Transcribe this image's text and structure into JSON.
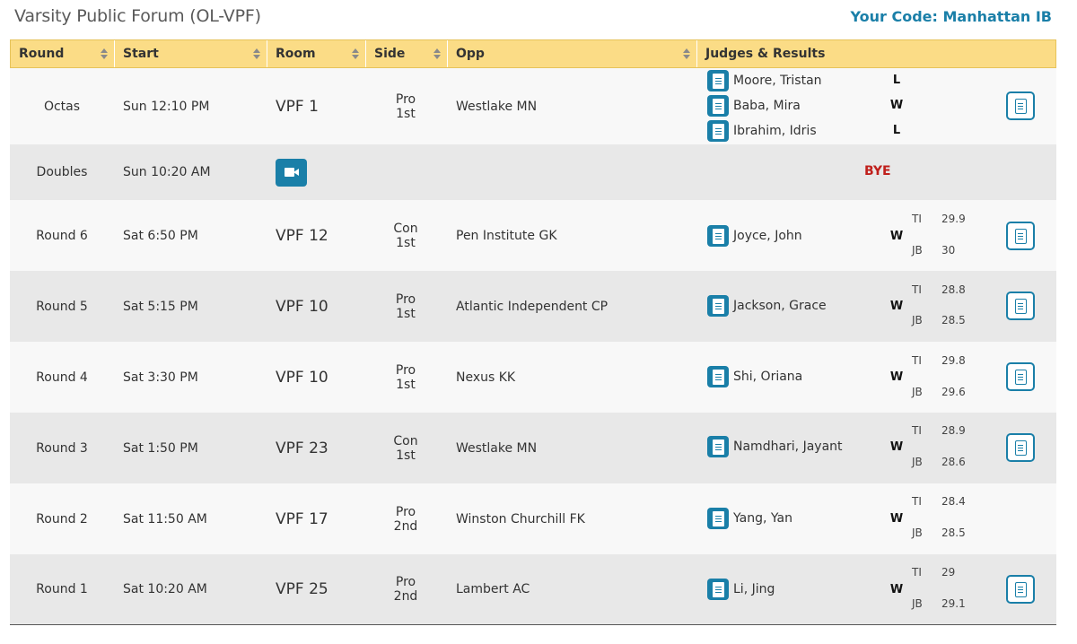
{
  "page": {
    "title": "Varsity Public Forum (OL-VPF)",
    "your_code": "Your Code: Manhattan IB"
  },
  "columns": [
    "Round",
    "Start",
    "Room",
    "Side",
    "Opp",
    "Judges & Results"
  ],
  "rows": [
    {
      "round": "Octas",
      "start": "Sun 12:10 PM",
      "room": "VPF 1",
      "side": "Pro",
      "order": "1st",
      "opp": "Westlake MN",
      "judges": [
        {
          "name": "Moore, Tristan",
          "result": "L"
        },
        {
          "name": "Baba, Mira",
          "result": "W"
        },
        {
          "name": "Ibrahim, Idris",
          "result": "L"
        }
      ],
      "ballot": true
    },
    {
      "round": "Doubles",
      "start": "Sun 10:20 AM",
      "video": true,
      "bye": "BYE"
    },
    {
      "round": "Round 6",
      "start": "Sat 6:50 PM",
      "room": "VPF 12",
      "side": "Con",
      "order": "1st",
      "opp": "Pen Institute GK",
      "judges": [
        {
          "name": "Joyce, John",
          "result": "W"
        }
      ],
      "points": [
        {
          "label": "TI",
          "value": "29.9"
        },
        {
          "label": "JB",
          "value": "30"
        }
      ],
      "ballot": true
    },
    {
      "round": "Round 5",
      "start": "Sat 5:15 PM",
      "room": "VPF 10",
      "side": "Pro",
      "order": "1st",
      "opp": "Atlantic Independent CP",
      "judges": [
        {
          "name": "Jackson, Grace",
          "result": "W"
        }
      ],
      "points": [
        {
          "label": "TI",
          "value": "28.8"
        },
        {
          "label": "JB",
          "value": "28.5"
        }
      ],
      "ballot": true
    },
    {
      "round": "Round 4",
      "start": "Sat 3:30 PM",
      "room": "VPF 10",
      "side": "Pro",
      "order": "1st",
      "opp": "Nexus KK",
      "judges": [
        {
          "name": "Shi, Oriana",
          "result": "W"
        }
      ],
      "points": [
        {
          "label": "TI",
          "value": "29.8"
        },
        {
          "label": "JB",
          "value": "29.6"
        }
      ],
      "ballot": true
    },
    {
      "round": "Round 3",
      "start": "Sat 1:50 PM",
      "room": "VPF 23",
      "side": "Con",
      "order": "1st",
      "opp": "Westlake MN",
      "judges": [
        {
          "name": "Namdhari, Jayant",
          "result": "W"
        }
      ],
      "points": [
        {
          "label": "TI",
          "value": "28.9"
        },
        {
          "label": "JB",
          "value": "28.6"
        }
      ],
      "ballot": true
    },
    {
      "round": "Round 2",
      "start": "Sat 11:50 AM",
      "room": "VPF 17",
      "side": "Pro",
      "order": "2nd",
      "opp": "Winston Churchill FK",
      "judges": [
        {
          "name": "Yang, Yan",
          "result": "W"
        }
      ],
      "points": [
        {
          "label": "TI",
          "value": "28.4"
        },
        {
          "label": "JB",
          "value": "28.5"
        }
      ],
      "ballot": false
    },
    {
      "round": "Round 1",
      "start": "Sat 10:20 AM",
      "room": "VPF 25",
      "side": "Pro",
      "order": "2nd",
      "opp": "Lambert AC",
      "judges": [
        {
          "name": "Li, Jing",
          "result": "W"
        }
      ],
      "points": [
        {
          "label": "TI",
          "value": "29"
        },
        {
          "label": "JB",
          "value": "29.1"
        }
      ],
      "ballot": true
    }
  ],
  "colors": {
    "header_bg": "#fbdc86",
    "accent": "#1a7fa8",
    "bye": "#c0201c",
    "row_odd": "#f8f8f8",
    "row_even": "#e8e8e8"
  },
  "icons": {
    "judge": "document-icon",
    "ballot": "ballot-document-icon",
    "video": "video-camera-icon",
    "sort": "sort-arrows-icon"
  }
}
